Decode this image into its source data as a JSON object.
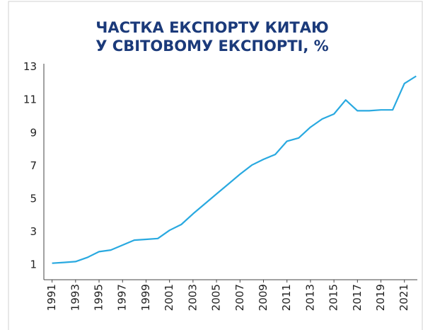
{
  "chart_data": {
    "type": "line",
    "title": [
      "ЧАСТКА ЕКСПОРТУ КИТАЮ",
      "У СВІТОВОМУ ЕКСПОРТІ, %"
    ],
    "x": [
      1991,
      1992,
      1993,
      1994,
      1995,
      1996,
      1997,
      1998,
      1999,
      2000,
      2001,
      2002,
      2003,
      2004,
      2005,
      2006,
      2007,
      2008,
      2009,
      2010,
      2011,
      2012,
      2013,
      2014,
      2015,
      2016,
      2017,
      2018,
      2019,
      2020,
      2021,
      2022
    ],
    "series": [
      {
        "color": "#29a9e0",
        "values": [
          1.1,
          1.15,
          1.2,
          1.45,
          1.8,
          1.9,
          2.2,
          2.5,
          2.55,
          2.6,
          3.1,
          3.45,
          4.1,
          4.7,
          5.3,
          5.9,
          6.5,
          7.05,
          7.4,
          7.7,
          8.5,
          8.7,
          9.35,
          9.85,
          10.15,
          11.0,
          10.35,
          10.35,
          10.4,
          10.4,
          12.0,
          12.45
        ]
      }
    ],
    "xlim": [
      1990.3,
      2022.1
    ],
    "xticks": [
      1991,
      1993,
      1995,
      1997,
      1999,
      2001,
      2003,
      2005,
      2007,
      2009,
      2011,
      2013,
      2015,
      2017,
      2019,
      2021
    ],
    "ylim": [
      0.1,
      13.2
    ],
    "yticks": [
      1,
      3,
      5,
      7,
      9,
      11,
      13
    ]
  }
}
